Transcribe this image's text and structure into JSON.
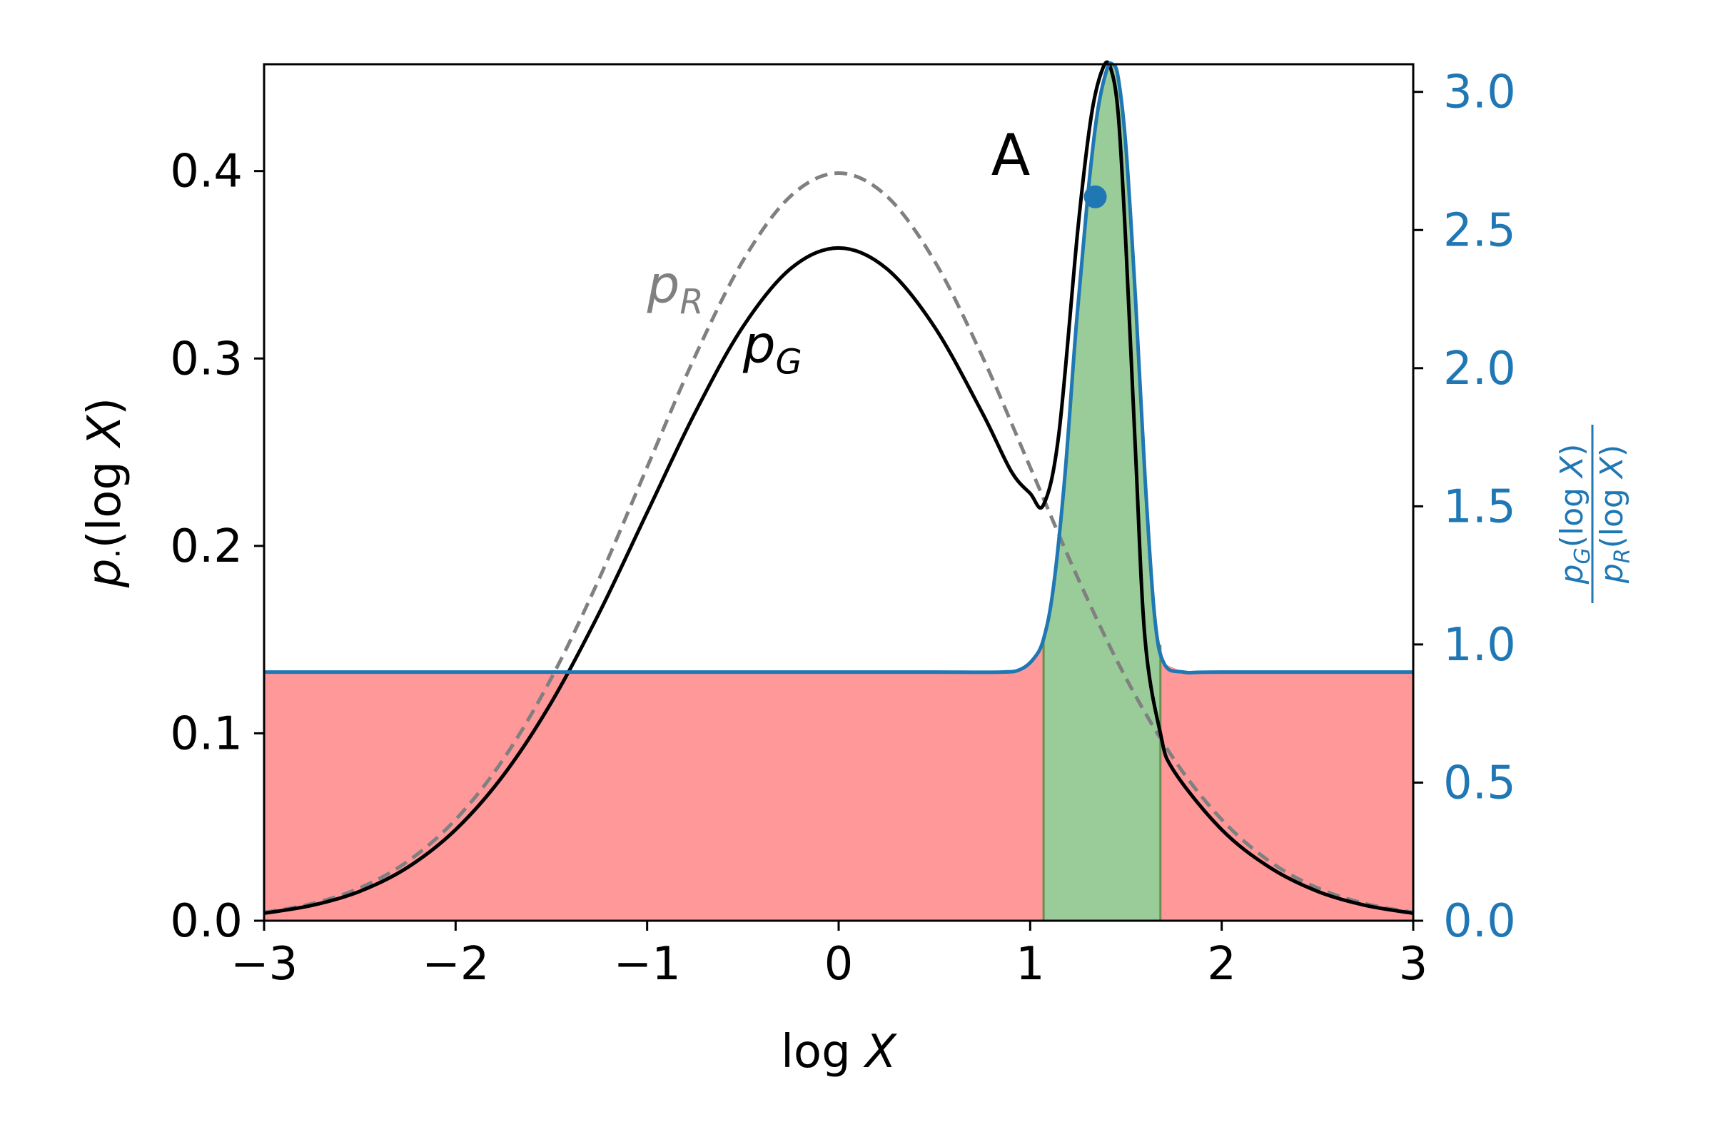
{
  "chart_data": {
    "type": "line",
    "title": "",
    "xlabel": "log X",
    "xlabel_math": {
      "func": "log",
      "var": "X"
    },
    "ylabel_left": "p.(log X)",
    "ylabel_left_math": {
      "main": "p",
      "sub": "·",
      "rest": "(log X)"
    },
    "ylabel_right": "p_G(log X) / p_R(log X)",
    "ylabel_right_math": {
      "num_main": "p",
      "num_sub": "G",
      "num_rest": "(log X)",
      "den_main": "p",
      "den_sub": "R",
      "den_rest": "(log X)"
    },
    "xlim": [
      -3,
      3
    ],
    "ylim_left": [
      0,
      0.457
    ],
    "ylim_right": [
      0,
      3.1
    ],
    "x_ticks": [
      -3,
      -2,
      -1,
      0,
      1,
      2,
      3
    ],
    "x_tick_labels": [
      "−3",
      "−2",
      "−1",
      "0",
      "1",
      "2",
      "3"
    ],
    "y_left_ticks": [
      0.0,
      0.1,
      0.2,
      0.3,
      0.4
    ],
    "y_left_tick_labels": [
      "0.0",
      "0.1",
      "0.2",
      "0.3",
      "0.4"
    ],
    "y_right_ticks": [
      0.0,
      0.5,
      1.0,
      1.5,
      2.0,
      2.5,
      3.0
    ],
    "y_right_tick_labels": [
      "0.0",
      "0.5",
      "1.0",
      "1.5",
      "2.0",
      "2.5",
      "3.0"
    ],
    "grid": false,
    "series": [
      {
        "name": "p_R",
        "axis": "left",
        "style": "dashed",
        "color": "#808080",
        "label": {
          "main": "p",
          "sub": "R"
        },
        "label_pos": [
          -1.0,
          0.33
        ],
        "x": [
          -3,
          -2.75,
          -2.5,
          -2.25,
          -2,
          -1.75,
          -1.5,
          -1.25,
          -1,
          -0.75,
          -0.5,
          -0.25,
          0,
          0.25,
          0.5,
          0.75,
          1,
          1.25,
          1.5,
          1.75,
          2,
          2.25,
          2.5,
          2.75,
          3
        ],
        "values": [
          0.0044,
          0.0091,
          0.0175,
          0.0317,
          0.054,
          0.0863,
          0.1295,
          0.1826,
          0.242,
          0.3011,
          0.3521,
          0.3867,
          0.3989,
          0.3867,
          0.3521,
          0.3011,
          0.242,
          0.1826,
          0.1295,
          0.0863,
          0.054,
          0.0317,
          0.0175,
          0.0091,
          0.0044
        ]
      },
      {
        "name": "p_G",
        "axis": "left",
        "style": "solid",
        "color": "#000000",
        "label": {
          "main": "p",
          "sub": "G"
        },
        "label_pos": [
          -0.5,
          0.298
        ],
        "x": [
          -3,
          -2.75,
          -2.5,
          -2.25,
          -2,
          -1.75,
          -1.5,
          -1.25,
          -1,
          -0.75,
          -0.5,
          -0.25,
          0,
          0.25,
          0.5,
          0.75,
          0.9,
          1.0,
          1.07,
          1.15,
          1.25,
          1.32,
          1.38,
          1.42,
          1.46,
          1.5,
          1.55,
          1.6,
          1.68,
          1.75,
          2,
          2.25,
          2.5,
          2.75,
          3
        ],
        "values": [
          0.004,
          0.0082,
          0.0157,
          0.0285,
          0.0486,
          0.0777,
          0.1165,
          0.1643,
          0.2178,
          0.271,
          0.3169,
          0.348,
          0.359,
          0.348,
          0.3169,
          0.271,
          0.24,
          0.228,
          0.222,
          0.26,
          0.37,
          0.43,
          0.455,
          0.455,
          0.43,
          0.36,
          0.25,
          0.15,
          0.1,
          0.08,
          0.0486,
          0.0285,
          0.0157,
          0.0082,
          0.004
        ]
      },
      {
        "name": "p_G / p_R",
        "axis": "right",
        "style": "solid",
        "color": "#1f77b4",
        "x": [
          -3,
          -1,
          0,
          0.5,
          0.85,
          0.95,
          1.02,
          1.07,
          1.12,
          1.18,
          1.24,
          1.3,
          1.35,
          1.4,
          1.43,
          1.46,
          1.5,
          1.55,
          1.6,
          1.65,
          1.7,
          1.8,
          2,
          3
        ],
        "values": [
          0.9,
          0.9,
          0.9,
          0.9,
          0.9,
          0.91,
          0.95,
          1.02,
          1.2,
          1.6,
          2.15,
          2.62,
          2.92,
          3.08,
          3.1,
          3.05,
          2.8,
          2.25,
          1.6,
          1.1,
          0.93,
          0.9,
          0.9,
          0.9
        ]
      }
    ],
    "fills": [
      {
        "name": "ratio-below-one",
        "color": "#ff9999",
        "x_from": -3,
        "x_to": 3,
        "top": "min(ratio, 1)"
      },
      {
        "name": "ratio-above-one",
        "color": "#99cc99",
        "x_from": 1.07,
        "x_to": 1.68,
        "top": "ratio"
      }
    ],
    "boundary_lines_x": [
      1.07,
      1.68
    ],
    "annotations": [
      {
        "text": "A",
        "x": 1.0,
        "y_right": 2.7,
        "color": "#000000"
      }
    ],
    "points": [
      {
        "name": "A",
        "x": 1.34,
        "y_right": 2.62,
        "color": "#1f77b4"
      }
    ]
  }
}
